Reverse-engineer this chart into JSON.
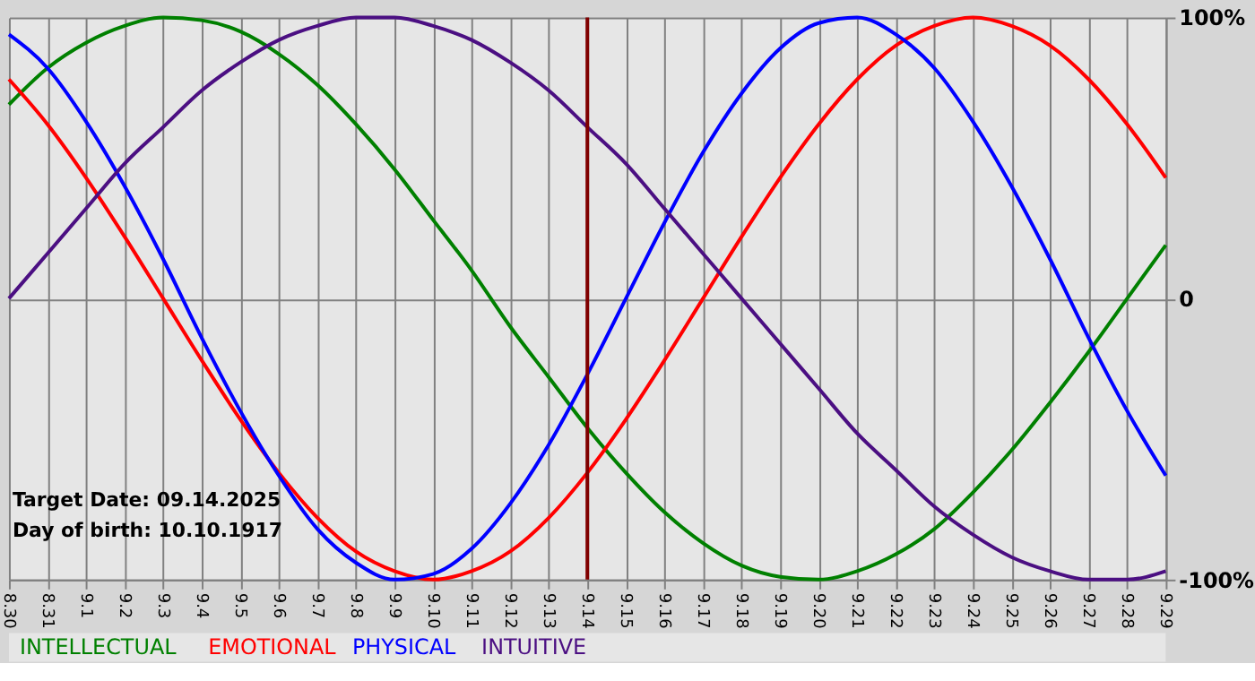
{
  "chart_data": {
    "type": "line",
    "categories": [
      "8.30",
      "8.31",
      "9.1",
      "9.2",
      "9.3",
      "9.4",
      "9.5",
      "9.6",
      "9.7",
      "9.8",
      "9.9",
      "9.10",
      "9.11",
      "9.12",
      "9.13",
      "9.14",
      "9.15",
      "9.16",
      "9.17",
      "9.18",
      "9.19",
      "9.20",
      "9.21",
      "9.22",
      "9.23",
      "9.24",
      "9.25",
      "9.26",
      "9.27",
      "9.28",
      "9.29"
    ],
    "series": [
      {
        "name": "INTELLECTUAL",
        "color": "#008000",
        "values": [
          69,
          82,
          91,
          97,
          100,
          99,
          95,
          87,
          76,
          62,
          46,
          28,
          10,
          -10,
          -28,
          -46,
          -62,
          -76,
          -87,
          -95,
          -99,
          -100,
          -97,
          -91,
          -82,
          -69,
          -54,
          -37,
          -19,
          0,
          19
        ]
      },
      {
        "name": "EMOTIONAL",
        "color": "#ff0000",
        "values": [
          78,
          62,
          43,
          22,
          0,
          -22,
          -43,
          -62,
          -78,
          -90,
          -97,
          -100,
          -97,
          -90,
          -78,
          -62,
          -43,
          -22,
          0,
          22,
          43,
          62,
          78,
          90,
          97,
          100,
          97,
          90,
          78,
          62,
          43
        ]
      },
      {
        "name": "PHYSICAL",
        "color": "#0000ff",
        "values": [
          94,
          82,
          63,
          40,
          14,
          -14,
          -40,
          -63,
          -82,
          -94,
          -100,
          -98,
          -89,
          -73,
          -52,
          -27,
          0,
          27,
          52,
          73,
          89,
          98,
          100,
          94,
          82,
          63,
          40,
          14,
          -14,
          -40,
          -63
        ]
      },
      {
        "name": "INTUITIVE",
        "color": "#4b0f82",
        "values": [
          0,
          16,
          32,
          48,
          61,
          74,
          84,
          92,
          97,
          100,
          100,
          97,
          92,
          84,
          74,
          61,
          48,
          32,
          16,
          0,
          -16,
          -32,
          -48,
          -61,
          -74,
          -84,
          -92,
          -97,
          -100,
          -100,
          -97
        ]
      }
    ],
    "ylim": [
      -100,
      100
    ],
    "yticks": [
      {
        "value": 100,
        "label": "100%"
      },
      0,
      {
        "value": -100,
        "label": "-100%"
      }
    ],
    "ref_lines": [
      {
        "axis": "x",
        "value": "9.14",
        "color": "#800000"
      }
    ],
    "annotations": [
      "Target Date: 09.14.2025",
      "Day of birth: 10.10.1917"
    ],
    "grid": true,
    "legend": "bottom",
    "line_style": "solid",
    "marker": "none"
  }
}
